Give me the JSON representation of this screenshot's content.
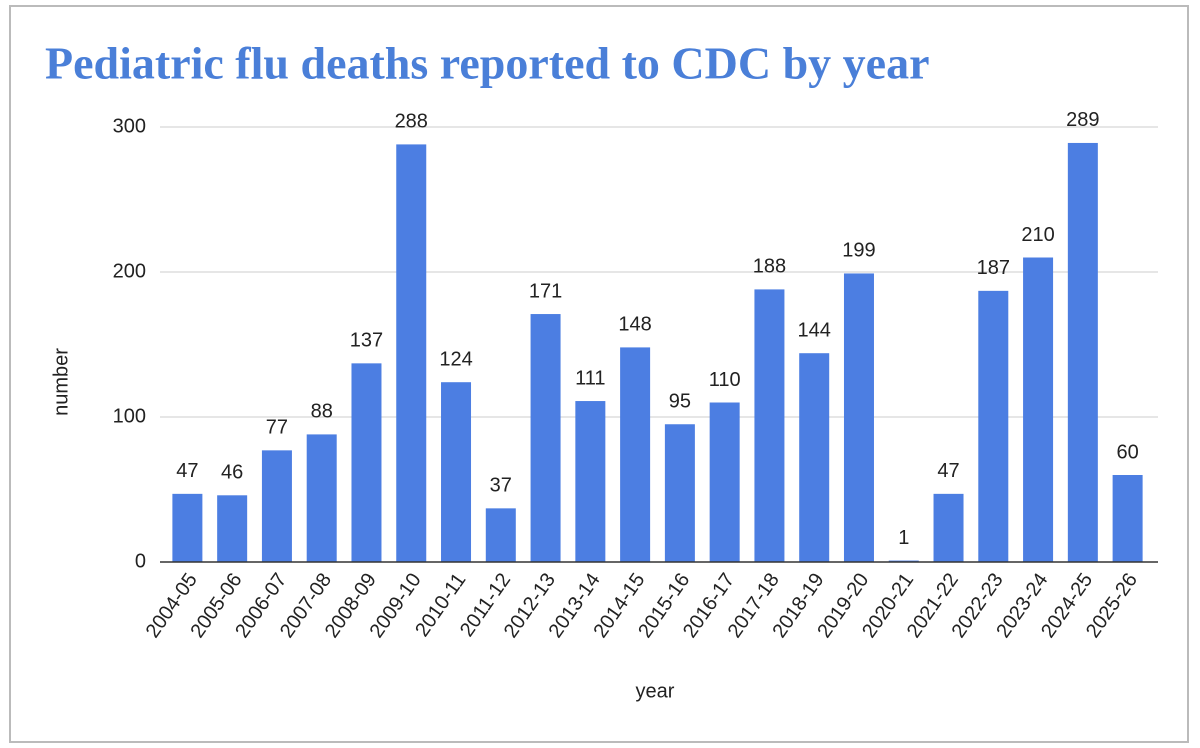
{
  "chart_data": {
    "type": "bar",
    "title": "Pediatric flu deaths reported to CDC by year",
    "x_label": "year",
    "y_label": "number",
    "categories": [
      "2004-05",
      "2005-06",
      "2006-07",
      "2007-08",
      "2008-09",
      "2009-10",
      "2010-11",
      "2011-12",
      "2012-13",
      "2013-14",
      "2014-15",
      "2015-16",
      "2016-17",
      "2017-18",
      "2018-19",
      "2019-20",
      "2020-21",
      "2021-22",
      "2022-23",
      "2023-24",
      "2024-25",
      "2025-26"
    ],
    "values": [
      47,
      46,
      77,
      88,
      137,
      288,
      124,
      37,
      171,
      111,
      148,
      95,
      110,
      188,
      144,
      199,
      1,
      47,
      187,
      210,
      289,
      60
    ],
    "color": "#4c7ee2",
    "ylim": [
      0,
      300
    ],
    "yticks": [
      0,
      100,
      200,
      300
    ],
    "grid": true
  }
}
